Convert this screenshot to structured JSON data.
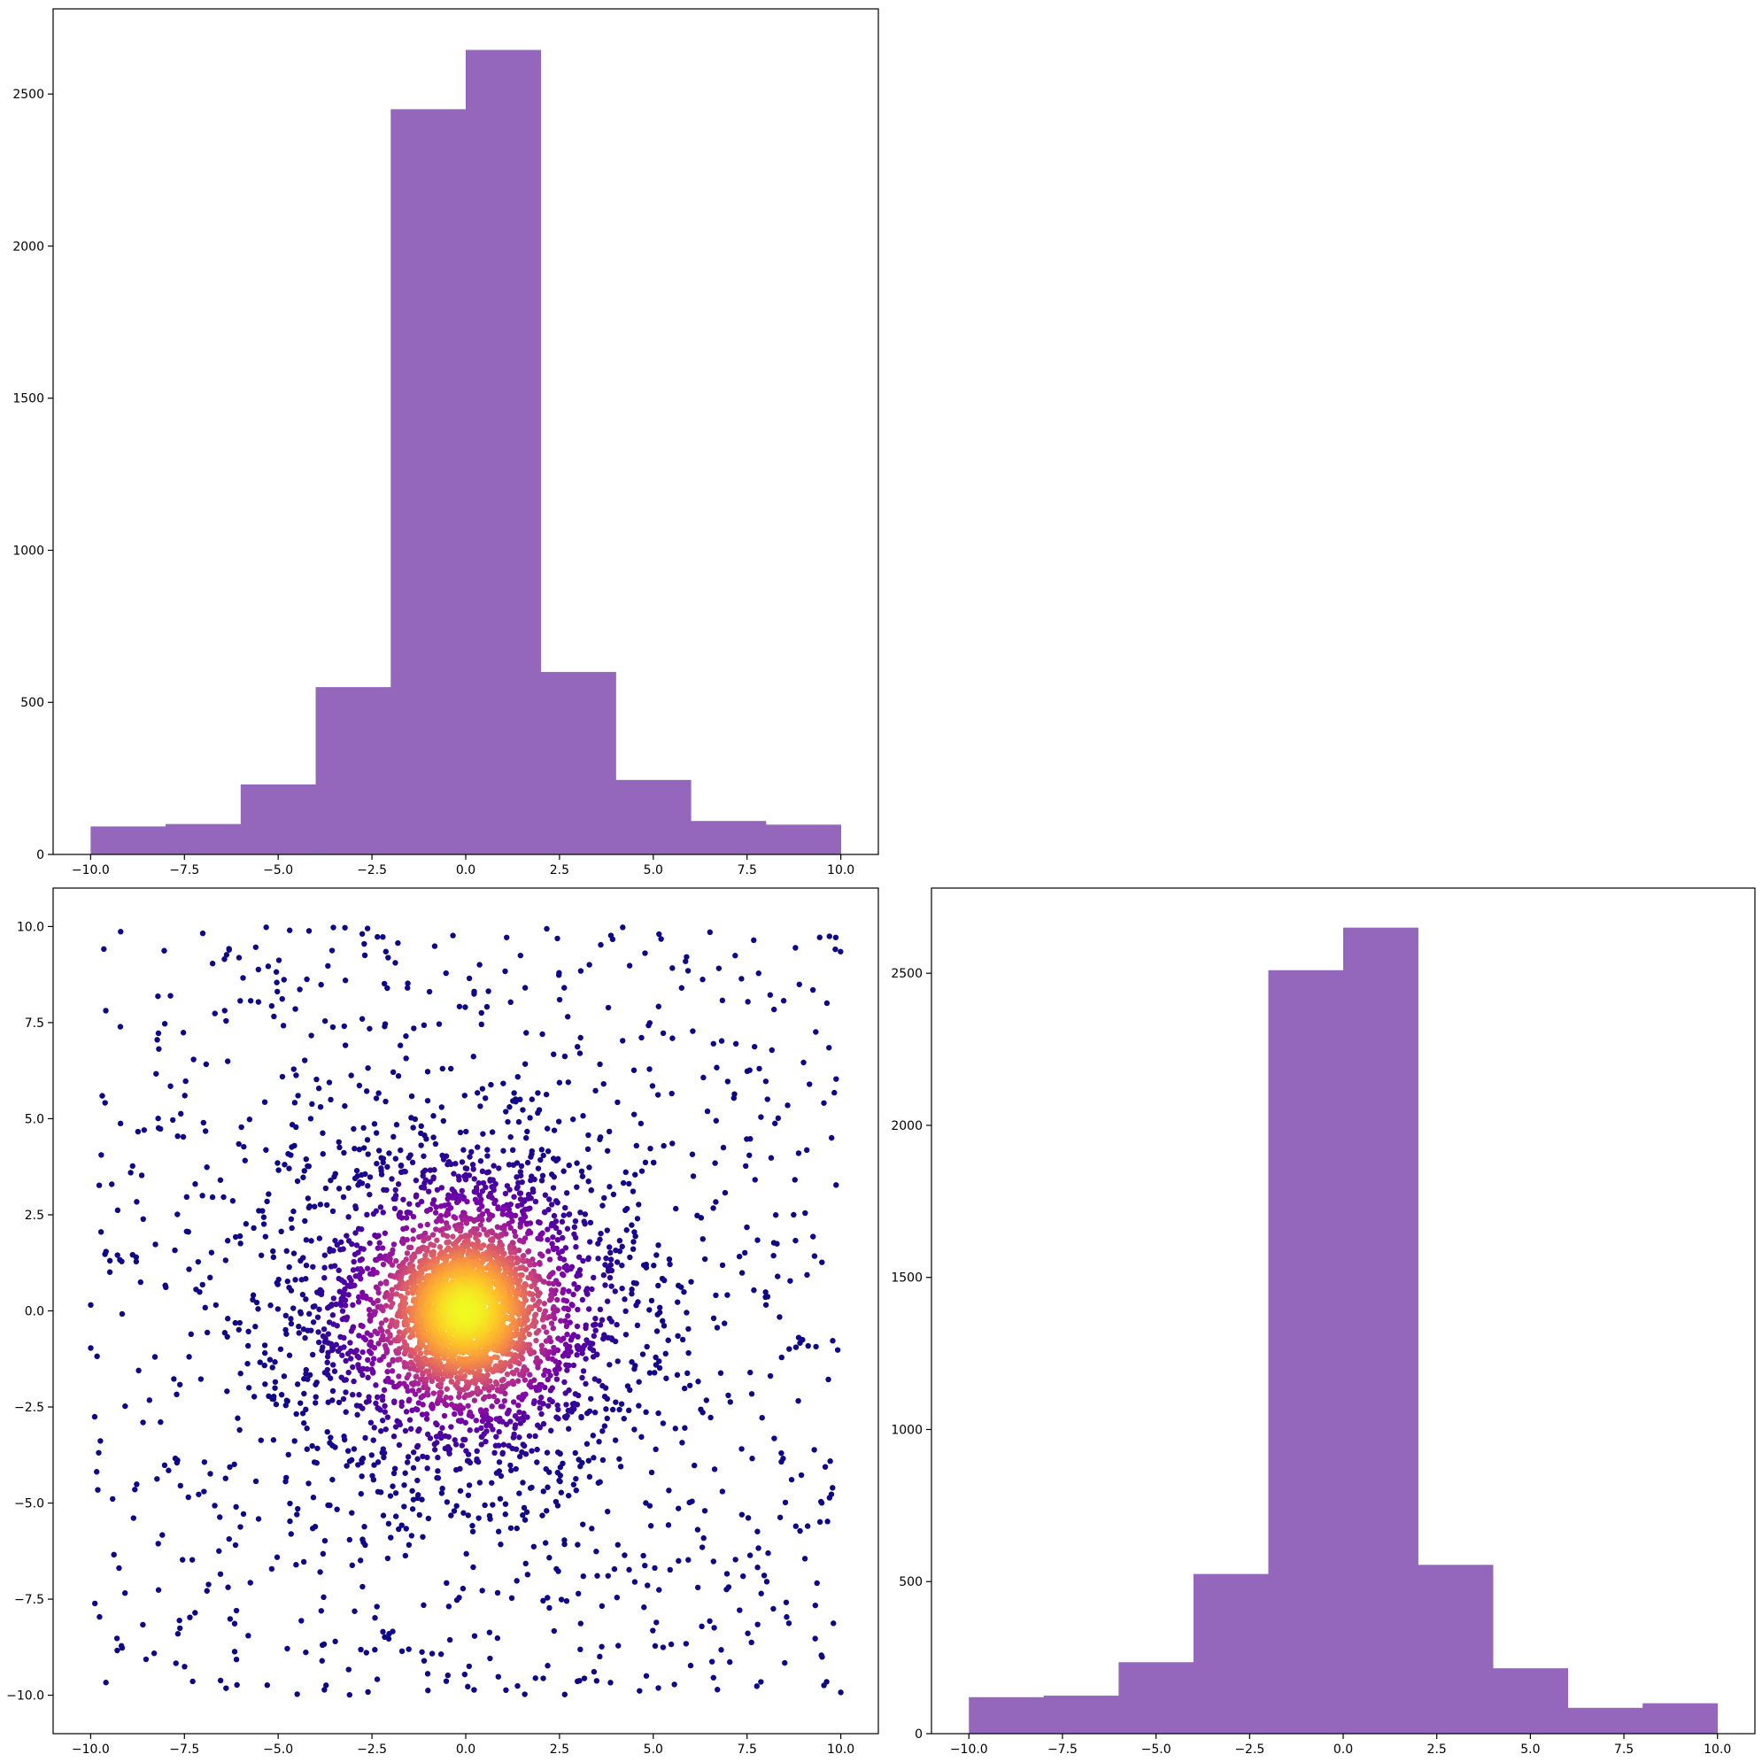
{
  "chart_data": [
    {
      "id": "hist-x",
      "type": "bar",
      "subtype": "histogram",
      "title": "",
      "xlabel": "",
      "ylabel": "",
      "bin_edges": [
        -10,
        -8,
        -6,
        -4,
        -2,
        0,
        2,
        4,
        6,
        8,
        10
      ],
      "values": [
        92,
        100,
        230,
        550,
        2450,
        2645,
        600,
        245,
        110,
        98
      ],
      "xlim": [
        -11,
        11
      ],
      "ylim": [
        0,
        2780
      ],
      "xticks": [
        -10.0,
        -7.5,
        -5.0,
        -2.5,
        0.0,
        2.5,
        5.0,
        7.5,
        10.0
      ],
      "xtick_labels": [
        "−10.0",
        "−7.5",
        "−5.0",
        "−2.5",
        "0.0",
        "2.5",
        "5.0",
        "7.5",
        "10.0"
      ],
      "yticks": [
        0,
        500,
        1000,
        1500,
        2000,
        2500
      ],
      "ytick_labels": [
        "0",
        "500",
        "1000",
        "1500",
        "2000",
        "2500"
      ],
      "color": "#9467bd",
      "grid": false
    },
    {
      "id": "scatter-xy",
      "type": "scatter",
      "title": "",
      "xlabel": "",
      "ylabel": "",
      "description_of_distribution": "dense isotropic cluster centered at (0,0) plus uniform background on [-10,10] x [-10,10], colored by density",
      "cluster_center": [
        0,
        0
      ],
      "xlim": [
        -11,
        11
      ],
      "ylim": [
        -11,
        11
      ],
      "xticks": [
        -10.0,
        -7.5,
        -5.0,
        -2.5,
        0.0,
        2.5,
        5.0,
        7.5,
        10.0
      ],
      "xtick_labels": [
        "−10.0",
        "−7.5",
        "−5.0",
        "−2.5",
        "0.0",
        "2.5",
        "5.0",
        "7.5",
        "10.0"
      ],
      "yticks": [
        -10.0,
        -7.5,
        -5.0,
        -2.5,
        0.0,
        2.5,
        5.0,
        7.5,
        10.0
      ],
      "ytick_labels": [
        "−10.0",
        "−7.5",
        "−5.0",
        "−2.5",
        "0.0",
        "2.5",
        "5.0",
        "7.5",
        "10.0"
      ],
      "colormap": "plasma",
      "color_low": "#3b049a",
      "color_mid": "#cc4778",
      "color_high": "#f0f921",
      "grid": false
    },
    {
      "id": "hist-y",
      "type": "bar",
      "subtype": "histogram",
      "title": "",
      "xlabel": "",
      "ylabel": "",
      "bin_edges": [
        -10,
        -8,
        -6,
        -4,
        -2,
        0,
        2,
        4,
        6,
        8,
        10
      ],
      "values": [
        120,
        125,
        235,
        525,
        2510,
        2650,
        555,
        215,
        85,
        100
      ],
      "xlim": [
        -11,
        11
      ],
      "ylim": [
        0,
        2780
      ],
      "xticks": [
        -10.0,
        -7.5,
        -5.0,
        -2.5,
        0.0,
        2.5,
        5.0,
        7.5,
        10.0
      ],
      "xtick_labels": [
        "−10.0",
        "−7.5",
        "−5.0",
        "−2.5",
        "0.0",
        "2.5",
        "5.0",
        "7.5",
        "10.0"
      ],
      "yticks": [
        0,
        500,
        1000,
        1500,
        2000,
        2500
      ],
      "ytick_labels": [
        "0",
        "500",
        "1000",
        "1500",
        "2000",
        "2500"
      ],
      "color": "#9467bd",
      "grid": false
    }
  ]
}
